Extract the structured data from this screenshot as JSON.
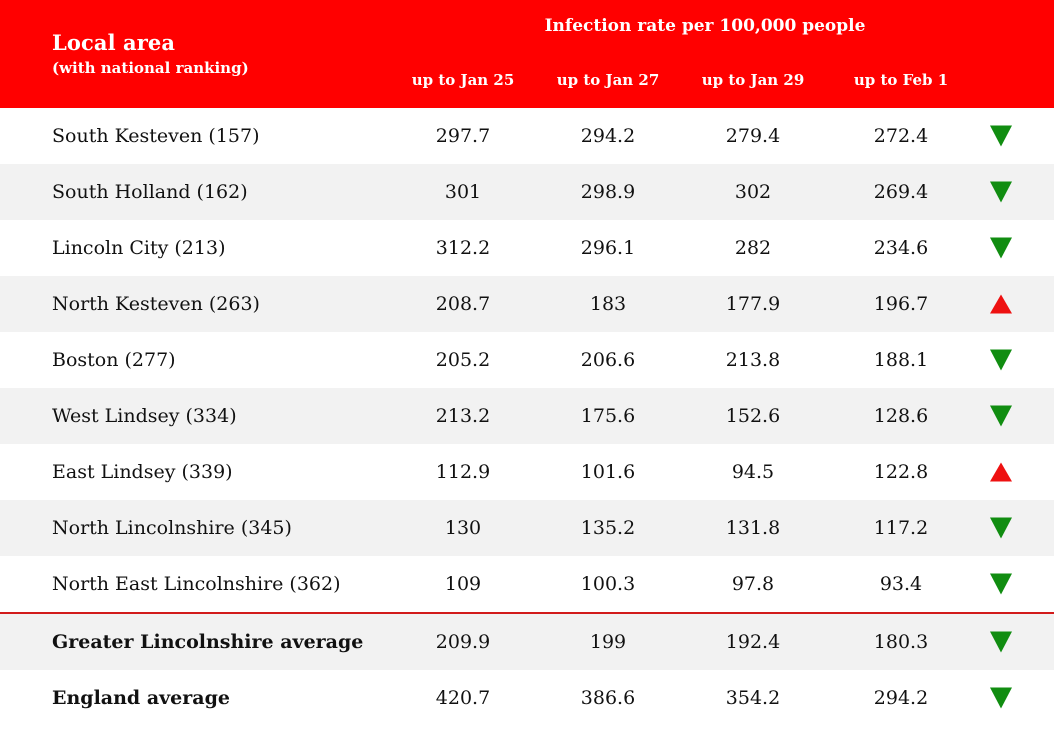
{
  "header": {
    "area_title": "Local area",
    "area_subtitle": "(with national ranking)",
    "group_title": "Infection rate per 100,000 people",
    "columns": [
      "up to Jan 25",
      "up to Jan 27",
      "up to Jan 29",
      "up to Feb 1"
    ]
  },
  "colors": {
    "header_bg": "#ff0000",
    "trend_down": "#118d11",
    "trend_up": "#ee1111",
    "alt_row_bg": "#f2f2f2"
  },
  "rows": [
    {
      "area": "South Kesteven (157)",
      "values": [
        "297.7",
        "294.2",
        "279.4",
        "272.4"
      ],
      "trend": "down"
    },
    {
      "area": "South Holland (162)",
      "values": [
        "301",
        "298.9",
        "302",
        "269.4"
      ],
      "trend": "down"
    },
    {
      "area": "Lincoln City (213)",
      "values": [
        "312.2",
        "296.1",
        "282",
        "234.6"
      ],
      "trend": "down"
    },
    {
      "area": "North Kesteven (263)",
      "values": [
        "208.7",
        "183",
        "177.9",
        "196.7"
      ],
      "trend": "up"
    },
    {
      "area": "Boston (277)",
      "values": [
        "205.2",
        "206.6",
        "213.8",
        "188.1"
      ],
      "trend": "down"
    },
    {
      "area": "West Lindsey (334)",
      "values": [
        "213.2",
        "175.6",
        "152.6",
        "128.6"
      ],
      "trend": "down"
    },
    {
      "area": "East Lindsey (339)",
      "values": [
        "112.9",
        "101.6",
        "94.5",
        "122.8"
      ],
      "trend": "up"
    },
    {
      "area": "North Lincolnshire (345)",
      "values": [
        "130",
        "135.2",
        "131.8",
        "117.2"
      ],
      "trend": "down"
    },
    {
      "area": "North East Lincolnshire (362)",
      "values": [
        "109",
        "100.3",
        "97.8",
        "93.4"
      ],
      "trend": "down"
    }
  ],
  "summary": [
    {
      "area": "Greater Lincolnshire average",
      "values": [
        "209.9",
        "199",
        "192.4",
        "180.3"
      ],
      "trend": "down"
    },
    {
      "area": "England average",
      "values": [
        "420.7",
        "386.6",
        "354.2",
        "294.2"
      ],
      "trend": "down"
    }
  ]
}
